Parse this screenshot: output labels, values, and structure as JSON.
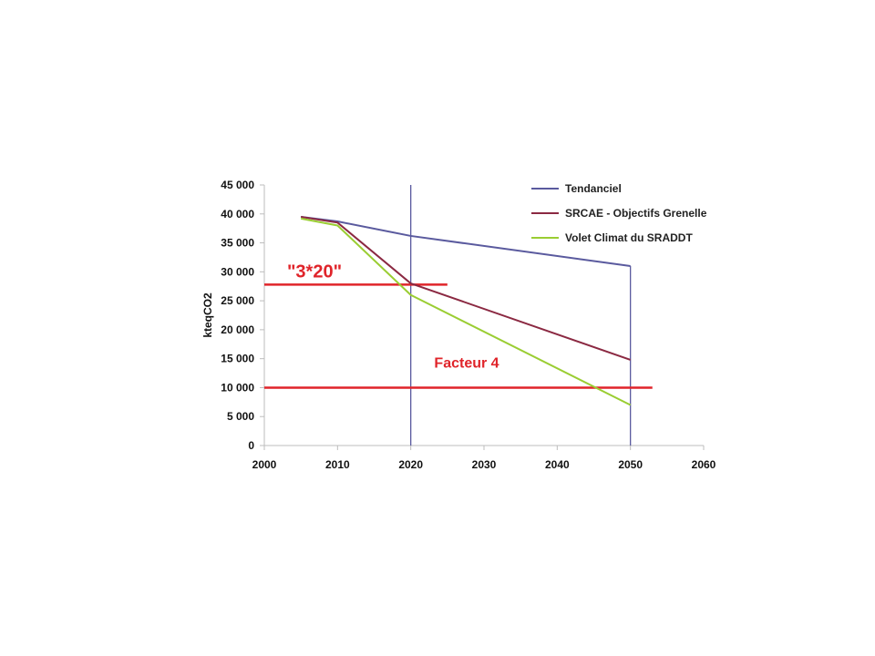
{
  "chart_data": {
    "type": "line",
    "title": "",
    "xlabel": "",
    "ylabel": "kteqCO2",
    "xlim": [
      2000,
      2060
    ],
    "ylim": [
      0,
      45000
    ],
    "x_ticks": [
      "2000",
      "2010",
      "2020",
      "2030",
      "2040",
      "2050",
      "2060"
    ],
    "y_ticks": [
      "0",
      "5 000",
      "10 000",
      "15 000",
      "20 000",
      "25 000",
      "30 000",
      "35 000",
      "40 000",
      "45 000"
    ],
    "legend_position": "top-right",
    "grid": false,
    "series": [
      {
        "name": "Tendanciel",
        "color": "#5a5a9e",
        "x": [
          2005,
          2010,
          2020,
          2050
        ],
        "y": [
          39500,
          38700,
          36200,
          31000
        ]
      },
      {
        "name": "SRCAE - Objectifs Grenelle",
        "color": "#8b2942",
        "x": [
          2005,
          2010,
          2020,
          2050
        ],
        "y": [
          39500,
          38500,
          28000,
          14800
        ]
      },
      {
        "name": "Volet Climat du SRADDT",
        "color": "#9acd32",
        "x": [
          2005,
          2010,
          2020,
          2050
        ],
        "y": [
          39200,
          38000,
          26000,
          7000
        ]
      }
    ],
    "reference_lines": [
      {
        "label": "\"3*20\"",
        "y": 27800,
        "x_from": 2000,
        "x_to": 2025,
        "color": "#e0242a"
      },
      {
        "label": "Facteur 4",
        "y": 10000,
        "x_from": 2000,
        "x_to": 2053,
        "color": "#e0242a"
      }
    ],
    "vertical_markers": [
      {
        "x": 2020,
        "y_top": 45000,
        "color": "#5a5a9e"
      },
      {
        "x": 2050,
        "y_top": 31000,
        "color": "#5a5a9e"
      }
    ]
  }
}
